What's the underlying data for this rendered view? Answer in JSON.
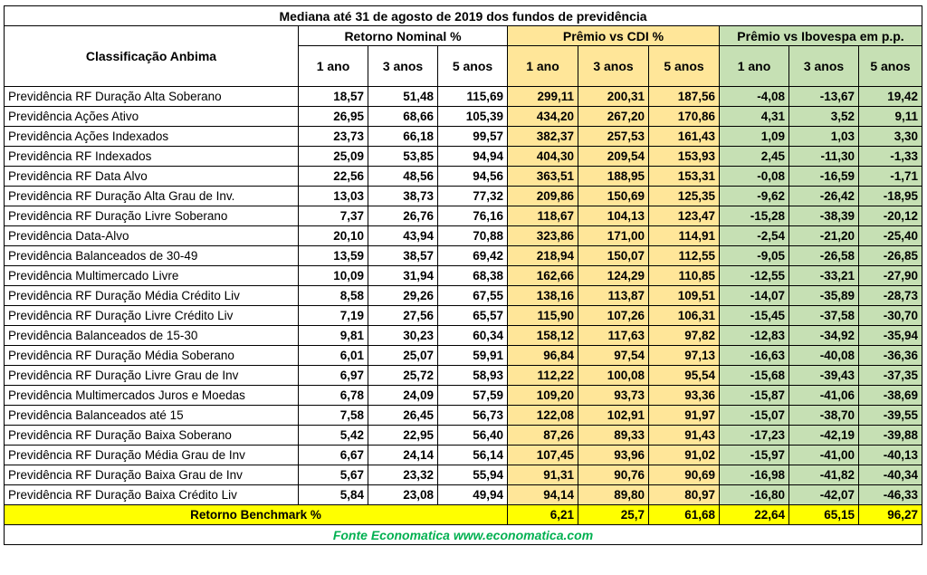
{
  "title": "Mediana até 31 de agosto de 2019 dos fundos de previdência",
  "colors": {
    "nominal": "#ffffff",
    "cdi": "#ffe699",
    "ibovespa": "#c6e0b4",
    "benchmark": "#ffff00",
    "footer_text": "#00b050"
  },
  "chart_data": {
    "type": "table",
    "title": "Mediana até 31 de agosto de 2019 dos fundos de previdência",
    "row_header": "Classificação Anbima",
    "groups": [
      {
        "name": "Retorno Nominal %",
        "columns": [
          "1 ano",
          "3 anos",
          "5 anos"
        ]
      },
      {
        "name": "Prêmio vs CDI %",
        "columns": [
          "1 ano",
          "3 anos",
          "5 anos"
        ]
      },
      {
        "name": "Prêmio vs Ibovespa em p.p.",
        "columns": [
          "1 ano",
          "3 anos",
          "5 anos"
        ]
      }
    ],
    "rows": [
      {
        "name": "Previdência RF Duração Alta Soberano",
        "values": [
          "18,57",
          "51,48",
          "115,69",
          "299,11",
          "200,31",
          "187,56",
          "-4,08",
          "-13,67",
          "19,42"
        ]
      },
      {
        "name": "Previdência Ações Ativo",
        "values": [
          "26,95",
          "68,66",
          "105,39",
          "434,20",
          "267,20",
          "170,86",
          "4,31",
          "3,52",
          "9,11"
        ]
      },
      {
        "name": "Previdência Ações Indexados",
        "values": [
          "23,73",
          "66,18",
          "99,57",
          "382,37",
          "257,53",
          "161,43",
          "1,09",
          "1,03",
          "3,30"
        ]
      },
      {
        "name": "Previdência RF Indexados",
        "values": [
          "25,09",
          "53,85",
          "94,94",
          "404,30",
          "209,54",
          "153,93",
          "2,45",
          "-11,30",
          "-1,33"
        ]
      },
      {
        "name": "Previdência RF Data Alvo",
        "values": [
          "22,56",
          "48,56",
          "94,56",
          "363,51",
          "188,95",
          "153,31",
          "-0,08",
          "-16,59",
          "-1,71"
        ]
      },
      {
        "name": "Previdência RF Duração Alta Grau de Inv.",
        "values": [
          "13,03",
          "38,73",
          "77,32",
          "209,86",
          "150,69",
          "125,35",
          "-9,62",
          "-26,42",
          "-18,95"
        ]
      },
      {
        "name": "Previdência RF Duração Livre Soberano",
        "values": [
          "7,37",
          "26,76",
          "76,16",
          "118,67",
          "104,13",
          "123,47",
          "-15,28",
          "-38,39",
          "-20,12"
        ]
      },
      {
        "name": "Previdência Data-Alvo",
        "values": [
          "20,10",
          "43,94",
          "70,88",
          "323,86",
          "171,00",
          "114,91",
          "-2,54",
          "-21,20",
          "-25,40"
        ]
      },
      {
        "name": "Previdência Balanceados de 30-49",
        "values": [
          "13,59",
          "38,57",
          "69,42",
          "218,94",
          "150,07",
          "112,55",
          "-9,05",
          "-26,58",
          "-26,85"
        ]
      },
      {
        "name": "Previdência Multimercado Livre",
        "values": [
          "10,09",
          "31,94",
          "68,38",
          "162,66",
          "124,29",
          "110,85",
          "-12,55",
          "-33,21",
          "-27,90"
        ]
      },
      {
        "name": "Previdência RF Duração Média Crédito Liv",
        "values": [
          "8,58",
          "29,26",
          "67,55",
          "138,16",
          "113,87",
          "109,51",
          "-14,07",
          "-35,89",
          "-28,73"
        ]
      },
      {
        "name": "Previdência RF Duração Livre Crédito Liv",
        "values": [
          "7,19",
          "27,56",
          "65,57",
          "115,90",
          "107,26",
          "106,31",
          "-15,45",
          "-37,58",
          "-30,70"
        ]
      },
      {
        "name": "Previdência Balanceados de 15-30",
        "values": [
          "9,81",
          "30,23",
          "60,34",
          "158,12",
          "117,63",
          "97,82",
          "-12,83",
          "-34,92",
          "-35,94"
        ]
      },
      {
        "name": "Previdência RF Duração Média Soberano",
        "values": [
          "6,01",
          "25,07",
          "59,91",
          "96,84",
          "97,54",
          "97,13",
          "-16,63",
          "-40,08",
          "-36,36"
        ]
      },
      {
        "name": "Previdência RF Duração Livre Grau de Inv",
        "values": [
          "6,97",
          "25,72",
          "58,93",
          "112,22",
          "100,08",
          "95,54",
          "-15,68",
          "-39,43",
          "-37,35"
        ]
      },
      {
        "name": "Previdência Multimercados Juros e Moedas",
        "values": [
          "6,78",
          "24,09",
          "57,59",
          "109,20",
          "93,73",
          "93,36",
          "-15,87",
          "-41,06",
          "-38,69"
        ]
      },
      {
        "name": "Previdência Balanceados até 15",
        "values": [
          "7,58",
          "26,45",
          "56,73",
          "122,08",
          "102,91",
          "91,97",
          "-15,07",
          "-38,70",
          "-39,55"
        ]
      },
      {
        "name": "Previdência RF Duração Baixa Soberano",
        "values": [
          "5,42",
          "22,95",
          "56,40",
          "87,26",
          "89,33",
          "91,43",
          "-17,23",
          "-42,19",
          "-39,88"
        ]
      },
      {
        "name": "Previdência RF Duração Média Grau de Inv",
        "values": [
          "6,67",
          "24,14",
          "56,14",
          "107,45",
          "93,96",
          "91,02",
          "-15,97",
          "-41,00",
          "-40,13"
        ]
      },
      {
        "name": "Previdência RF Duração Baixa Grau de Inv",
        "values": [
          "5,67",
          "23,32",
          "55,94",
          "91,31",
          "90,76",
          "90,69",
          "-16,98",
          "-41,82",
          "-40,34"
        ]
      },
      {
        "name": "Previdência RF Duração Baixa Crédito Liv",
        "values": [
          "5,84",
          "23,08",
          "49,94",
          "94,14",
          "89,80",
          "80,97",
          "-16,80",
          "-42,07",
          "-46,33"
        ]
      }
    ],
    "benchmark": {
      "label": "Retorno Benchmark %",
      "values": [
        "6,21",
        "25,7",
        "61,68",
        "22,64",
        "65,15",
        "96,27"
      ]
    },
    "footer": "Fonte Economatica www.economatica.com"
  }
}
